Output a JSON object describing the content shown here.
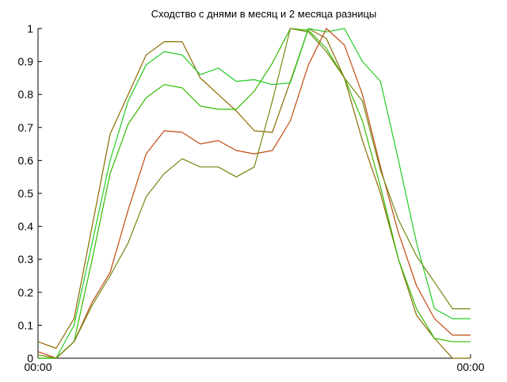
{
  "chart_data": {
    "type": "line",
    "title": "Сходство с днями в месяц и 2 месяца разницы",
    "xlabel": "",
    "ylabel": "",
    "ylim": [
      0,
      1
    ],
    "yticks": [
      "0",
      "0.1",
      "0.2",
      "0.3",
      "0.4",
      "0.5",
      "0.6",
      "0.7",
      "0.8",
      "0.9",
      "1"
    ],
    "xtick_labels": [
      "00:00",
      "00:00"
    ],
    "grid": false,
    "legend": "none",
    "x": [
      0,
      1,
      2,
      3,
      4,
      5,
      6,
      7,
      8,
      9,
      10,
      11,
      12,
      13,
      14,
      15,
      16,
      17,
      18,
      19,
      20,
      21,
      22,
      23,
      24
    ],
    "series": [
      {
        "color": "#8b6b00",
        "values": [
          0.05,
          0.03,
          0.12,
          0.4,
          0.68,
          0.8,
          0.92,
          0.96,
          0.96,
          0.85,
          0.8,
          0.75,
          0.69,
          0.685,
          0.84,
          1.0,
          0.97,
          0.85,
          0.66,
          0.5,
          0.3,
          0.13,
          0.06,
          0.0,
          0.0
        ]
      },
      {
        "color": "#22cc22",
        "values": [
          0.0,
          0.0,
          0.1,
          0.35,
          0.6,
          0.78,
          0.89,
          0.93,
          0.92,
          0.86,
          0.88,
          0.84,
          0.845,
          0.83,
          0.835,
          1.0,
          0.99,
          1.0,
          0.9,
          0.84,
          0.6,
          0.35,
          0.15,
          0.12,
          0.12
        ]
      },
      {
        "color": "#33bb00",
        "values": [
          0.0,
          0.0,
          0.05,
          0.3,
          0.56,
          0.71,
          0.79,
          0.83,
          0.82,
          0.765,
          0.755,
          0.755,
          0.81,
          0.895,
          1.0,
          0.995,
          0.94,
          0.85,
          0.72,
          0.52,
          0.3,
          0.15,
          0.06,
          0.05,
          0.05
        ]
      },
      {
        "color": "#c04a10",
        "values": [
          0.02,
          0.0,
          0.05,
          0.17,
          0.26,
          0.45,
          0.62,
          0.69,
          0.685,
          0.65,
          0.66,
          0.63,
          0.62,
          0.63,
          0.72,
          0.89,
          1.0,
          0.95,
          0.8,
          0.58,
          0.38,
          0.22,
          0.12,
          0.07,
          0.07
        ]
      },
      {
        "color": "#708a10",
        "values": [
          0.01,
          0.0,
          0.05,
          0.16,
          0.25,
          0.35,
          0.49,
          0.56,
          0.605,
          0.58,
          0.58,
          0.55,
          0.58,
          0.78,
          1.0,
          0.99,
          0.93,
          0.85,
          0.78,
          0.57,
          0.42,
          0.31,
          0.23,
          0.15,
          0.15
        ]
      }
    ]
  }
}
